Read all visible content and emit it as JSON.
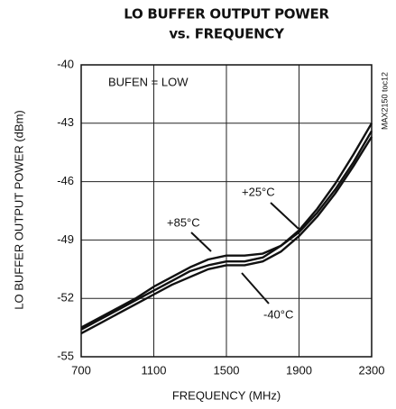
{
  "chart_data": {
    "type": "line",
    "title": [
      "LO BUFFER OUTPUT POWER",
      "vs. FREQUENCY"
    ],
    "x_label": "FREQUENCY (MHz)",
    "y_label": "LO BUFFER OUTPUT POWER (dBm)",
    "annotations": [
      "BUFEN = LOW",
      "MAX2150 toc12"
    ],
    "x": [
      700,
      800,
      900,
      1000,
      1100,
      1200,
      1300,
      1400,
      1500,
      1600,
      1700,
      1800,
      1900,
      2000,
      2100,
      2200,
      2300
    ],
    "series": [
      {
        "name": "+85°C",
        "color": "#111111",
        "values": [
          -53.5,
          -53.0,
          -52.5,
          -52.0,
          -51.4,
          -50.9,
          -50.4,
          -50.0,
          -49.8,
          -49.8,
          -49.7,
          -49.3,
          -48.6,
          -47.6,
          -46.4,
          -45.0,
          -43.4
        ]
      },
      {
        "name": "+25°C",
        "color": "#111111",
        "values": [
          -53.6,
          -53.1,
          -52.6,
          -52.1,
          -51.6,
          -51.1,
          -50.6,
          -50.3,
          -50.1,
          -50.1,
          -49.9,
          -49.3,
          -48.5,
          -47.4,
          -46.1,
          -44.6,
          -43.0
        ]
      },
      {
        "name": "-40°C",
        "color": "#111111",
        "values": [
          -53.8,
          -53.3,
          -52.8,
          -52.3,
          -51.8,
          -51.3,
          -50.9,
          -50.5,
          -50.3,
          -50.3,
          -50.1,
          -49.6,
          -48.8,
          -47.8,
          -46.6,
          -45.2,
          -43.7
        ]
      }
    ],
    "xlim": [
      700,
      2300
    ],
    "xticks": [
      700,
      1100,
      1500,
      1900,
      2300
    ],
    "ylim": [
      -55,
      -40
    ],
    "yticks": [
      -40,
      -43,
      -46,
      -49,
      -52,
      -55
    ],
    "grid": true
  }
}
